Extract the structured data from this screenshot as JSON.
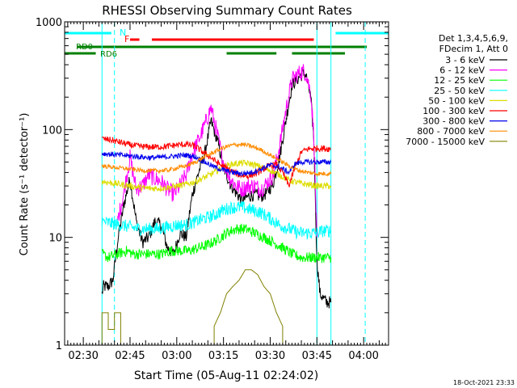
{
  "chart_data": {
    "type": "line",
    "title": "RHESSI Observing Summary Count Rates",
    "xlabel": "Start Time (05-Aug-11 02:24:02)",
    "ylabel": "Count Rate (s⁻¹ detector⁻¹)",
    "y_scale": "log",
    "ylim": [
      1,
      1000
    ],
    "y_ticks": [
      1,
      10,
      100,
      1000
    ],
    "x_unit": "minutes after 02:24:02",
    "xlim": [
      0,
      104
    ],
    "x_ticks": [
      {
        "label": "02:30",
        "value": 6
      },
      {
        "label": "02:45",
        "value": 21
      },
      {
        "label": "03:00",
        "value": 36
      },
      {
        "label": "03:15",
        "value": 51
      },
      {
        "label": "03:30",
        "value": 66
      },
      {
        "label": "03:45",
        "value": 81
      },
      {
        "label": "04:00",
        "value": 96
      }
    ],
    "legend": {
      "placement": "right",
      "header": [
        "Det 1,3,4,5,6,9,",
        "FDecim 1, Att 0"
      ]
    },
    "series": [
      {
        "name": "3 - 6 keV",
        "color": "#000000",
        "noise": 0.06,
        "points": [
          [
            12,
            3
          ],
          [
            12.5,
            3.5
          ],
          [
            14,
            3.5
          ],
          [
            15.5,
            4
          ],
          [
            17,
            9
          ],
          [
            19,
            20
          ],
          [
            21,
            35
          ],
          [
            23,
            14
          ],
          [
            25,
            9
          ],
          [
            27,
            10
          ],
          [
            29,
            14
          ],
          [
            31,
            13
          ],
          [
            33,
            8
          ],
          [
            35,
            7
          ],
          [
            37,
            11
          ],
          [
            39,
            10
          ],
          [
            41,
            25
          ],
          [
            43,
            40
          ],
          [
            45,
            60
          ],
          [
            47,
            120
          ],
          [
            49,
            80
          ],
          [
            51,
            45
          ],
          [
            53,
            32
          ],
          [
            55,
            26
          ],
          [
            57,
            22
          ],
          [
            59,
            24
          ],
          [
            61,
            25
          ],
          [
            63,
            24
          ],
          [
            65,
            26
          ],
          [
            67,
            32
          ],
          [
            69,
            55
          ],
          [
            71,
            120
          ],
          [
            73,
            260
          ],
          [
            75,
            300
          ],
          [
            76.5,
            330
          ],
          [
            77.5,
            320
          ],
          [
            79,
            200
          ],
          [
            80,
            80
          ],
          [
            81,
            6
          ],
          [
            82,
            3
          ],
          [
            84,
            2.5
          ],
          [
            85.5,
            2.5
          ]
        ]
      },
      {
        "name": "6 - 12 keV",
        "color": "#ff00ff",
        "noise": 0.08,
        "points": [
          [
            17,
            14
          ],
          [
            19,
            26
          ],
          [
            21,
            55
          ],
          [
            23,
            28
          ],
          [
            25,
            30
          ],
          [
            27,
            38
          ],
          [
            29,
            35
          ],
          [
            31,
            33
          ],
          [
            33,
            28
          ],
          [
            35,
            25
          ],
          [
            37,
            30
          ],
          [
            39,
            38
          ],
          [
            41,
            60
          ],
          [
            43,
            80
          ],
          [
            45,
            110
          ],
          [
            47,
            160
          ],
          [
            49,
            90
          ],
          [
            51,
            50
          ],
          [
            53,
            36
          ],
          [
            55,
            30
          ],
          [
            57,
            28
          ],
          [
            59,
            30
          ],
          [
            61,
            30
          ],
          [
            63,
            28
          ],
          [
            65,
            32
          ],
          [
            67,
            38
          ],
          [
            69,
            70
          ],
          [
            71,
            150
          ],
          [
            73,
            290
          ],
          [
            75,
            330
          ],
          [
            76.5,
            350
          ],
          [
            77.5,
            330
          ],
          [
            79,
            220
          ],
          [
            80,
            90
          ],
          [
            81,
            10
          ]
        ]
      },
      {
        "name": "12 - 25 keV",
        "color": "#00ff00",
        "noise": 0.05,
        "points": [
          [
            12,
            7
          ],
          [
            14,
            6.5
          ],
          [
            17,
            7
          ],
          [
            20,
            7.5
          ],
          [
            22,
            7
          ],
          [
            25,
            7
          ],
          [
            28,
            7
          ],
          [
            31,
            7
          ],
          [
            34,
            7.5
          ],
          [
            37,
            7.5
          ],
          [
            40,
            7.5
          ],
          [
            43,
            8
          ],
          [
            46,
            8.5
          ],
          [
            49,
            9.5
          ],
          [
            52,
            11
          ],
          [
            55,
            12
          ],
          [
            58,
            12
          ],
          [
            61,
            11
          ],
          [
            64,
            10
          ],
          [
            67,
            9
          ],
          [
            70,
            8
          ],
          [
            73,
            7
          ],
          [
            76,
            6.5
          ],
          [
            79,
            6.5
          ],
          [
            82,
            6.5
          ],
          [
            85.5,
            6.5
          ]
        ]
      },
      {
        "name": "25 - 50 keV",
        "color": "#00ffff",
        "noise": 0.06,
        "points": [
          [
            12,
            14
          ],
          [
            15,
            13.5
          ],
          [
            18,
            13
          ],
          [
            21,
            12.5
          ],
          [
            24,
            12
          ],
          [
            27,
            12
          ],
          [
            30,
            12
          ],
          [
            33,
            12.5
          ],
          [
            36,
            13
          ],
          [
            39,
            13
          ],
          [
            42,
            14
          ],
          [
            45,
            15
          ],
          [
            48,
            16
          ],
          [
            51,
            18
          ],
          [
            54,
            19
          ],
          [
            57,
            19
          ],
          [
            60,
            18
          ],
          [
            63,
            17
          ],
          [
            66,
            15
          ],
          [
            69,
            13
          ],
          [
            72,
            12
          ],
          [
            75,
            11
          ],
          [
            78,
            11
          ],
          [
            81,
            11
          ],
          [
            83,
            11.5
          ],
          [
            85.5,
            11.5
          ]
        ]
      },
      {
        "name": "50 - 100 keV",
        "color": "#dddd00",
        "noise": 0.03,
        "points": [
          [
            12,
            33
          ],
          [
            15,
            32
          ],
          [
            18,
            31
          ],
          [
            21,
            30
          ],
          [
            24,
            29
          ],
          [
            27,
            28.5
          ],
          [
            30,
            28.5
          ],
          [
            33,
            29
          ],
          [
            36,
            30
          ],
          [
            39,
            31
          ],
          [
            42,
            33
          ],
          [
            45,
            36
          ],
          [
            48,
            40
          ],
          [
            51,
            45
          ],
          [
            54,
            48
          ],
          [
            57,
            49
          ],
          [
            60,
            48
          ],
          [
            63,
            45
          ],
          [
            66,
            42
          ],
          [
            69,
            38
          ],
          [
            72,
            34
          ],
          [
            75,
            32
          ],
          [
            78,
            31
          ],
          [
            81,
            30
          ],
          [
            83,
            30
          ],
          [
            85.5,
            30
          ]
        ]
      },
      {
        "name": "100 - 300 keV",
        "color": "#ff0000",
        "noise": 0.03,
        "points": [
          [
            12,
            82
          ],
          [
            15,
            80
          ],
          [
            18,
            76
          ],
          [
            21,
            72
          ],
          [
            24,
            70
          ],
          [
            27,
            69
          ],
          [
            30,
            69
          ],
          [
            33,
            70
          ],
          [
            36,
            72
          ],
          [
            39,
            73
          ],
          [
            42,
            70
          ],
          [
            45,
            60
          ],
          [
            47,
            55
          ],
          [
            50,
            47
          ],
          [
            53,
            42
          ],
          [
            56,
            38
          ],
          [
            59,
            37
          ],
          [
            62,
            40
          ],
          [
            65,
            45
          ],
          [
            68,
            48
          ],
          [
            70,
            40
          ],
          [
            72,
            30
          ],
          [
            74,
            45
          ],
          [
            76,
            62
          ],
          [
            78,
            66
          ],
          [
            81,
            67
          ],
          [
            83,
            67
          ],
          [
            85.5,
            66
          ]
        ]
      },
      {
        "name": "300 - 800 keV",
        "color": "#0000ee",
        "noise": 0.025,
        "points": [
          [
            12,
            60
          ],
          [
            15,
            59
          ],
          [
            18,
            58
          ],
          [
            21,
            57
          ],
          [
            24,
            56
          ],
          [
            27,
            55
          ],
          [
            30,
            55
          ],
          [
            33,
            56
          ],
          [
            36,
            57
          ],
          [
            39,
            58
          ],
          [
            42,
            56
          ],
          [
            45,
            50
          ],
          [
            48,
            45
          ],
          [
            51,
            42
          ],
          [
            54,
            40
          ],
          [
            57,
            39
          ],
          [
            60,
            40
          ],
          [
            63,
            43
          ],
          [
            66,
            47
          ],
          [
            69,
            45
          ],
          [
            72,
            40
          ],
          [
            74,
            48
          ],
          [
            76,
            50
          ],
          [
            78,
            50
          ],
          [
            81,
            50
          ],
          [
            83,
            50
          ],
          [
            85.5,
            50
          ]
        ]
      },
      {
        "name": "800 - 7000 keV",
        "color": "#ff8c00",
        "noise": 0.02,
        "points": [
          [
            12,
            46
          ],
          [
            15,
            45
          ],
          [
            18,
            44
          ],
          [
            21,
            43
          ],
          [
            24,
            42
          ],
          [
            27,
            41.5
          ],
          [
            30,
            41.5
          ],
          [
            33,
            42
          ],
          [
            36,
            44
          ],
          [
            39,
            46
          ],
          [
            42,
            50
          ],
          [
            45,
            56
          ],
          [
            48,
            62
          ],
          [
            51,
            68
          ],
          [
            54,
            72
          ],
          [
            57,
            73
          ],
          [
            60,
            70
          ],
          [
            63,
            65
          ],
          [
            66,
            58
          ],
          [
            69,
            52
          ],
          [
            72,
            46
          ],
          [
            75,
            42
          ],
          [
            78,
            40
          ],
          [
            81,
            39
          ],
          [
            83,
            39
          ],
          [
            85.5,
            39
          ]
        ]
      },
      {
        "name": "7000 - 15000 keV",
        "color": "#808000",
        "noise": 0,
        "points": [
          [
            12,
            1
          ],
          [
            12,
            2
          ],
          [
            14,
            2
          ],
          [
            14,
            1.4
          ],
          [
            16,
            1.4
          ],
          [
            16,
            2
          ],
          [
            18,
            2
          ],
          [
            18,
            1
          ],
          [
            48,
            1
          ],
          [
            48,
            1.5
          ],
          [
            50,
            2
          ],
          [
            52,
            3
          ],
          [
            54,
            3.5
          ],
          [
            56,
            4
          ],
          [
            58,
            5
          ],
          [
            60,
            5
          ],
          [
            62,
            4.5
          ],
          [
            64,
            3.5
          ],
          [
            66,
            3
          ],
          [
            68,
            2
          ],
          [
            70,
            1.5
          ],
          [
            70,
            1
          ]
        ]
      }
    ],
    "annotations": [
      {
        "text": "N",
        "color": "#00ffff"
      },
      {
        "text": "F",
        "color": "#ff0000"
      },
      {
        "text": "RD0",
        "color": "#008000"
      },
      {
        "text": "RD6",
        "color": "#008000"
      }
    ],
    "vertical_markers": [
      {
        "x": 12,
        "color": "#00ffff",
        "style": "solid"
      },
      {
        "x": 16,
        "color": "#00ffff",
        "style": "dashed"
      },
      {
        "x": 81,
        "color": "#00ffff",
        "style": "solid"
      },
      {
        "x": 85.5,
        "color": "#00ffff",
        "style": "solid"
      },
      {
        "x": 96.5,
        "color": "#00ffff",
        "style": "dashed"
      }
    ],
    "flag_bars": [
      {
        "row": 1,
        "color": "#00ffff",
        "segments": [
          [
            0,
            15
          ],
          [
            87,
            104
          ]
        ]
      },
      {
        "row": 2,
        "color": "#ff0000",
        "segments": [
          [
            21,
            24
          ],
          [
            28,
            80
          ]
        ]
      },
      {
        "row": 3,
        "color": "#008000",
        "segments": [
          [
            4,
            97
          ]
        ]
      },
      {
        "row": 4,
        "color": "#008000",
        "segments": [
          [
            0,
            10
          ],
          [
            52,
            68
          ],
          [
            73,
            90
          ]
        ]
      }
    ]
  },
  "footer": {
    "timestamp": "18-Oct-2021 23:33"
  }
}
